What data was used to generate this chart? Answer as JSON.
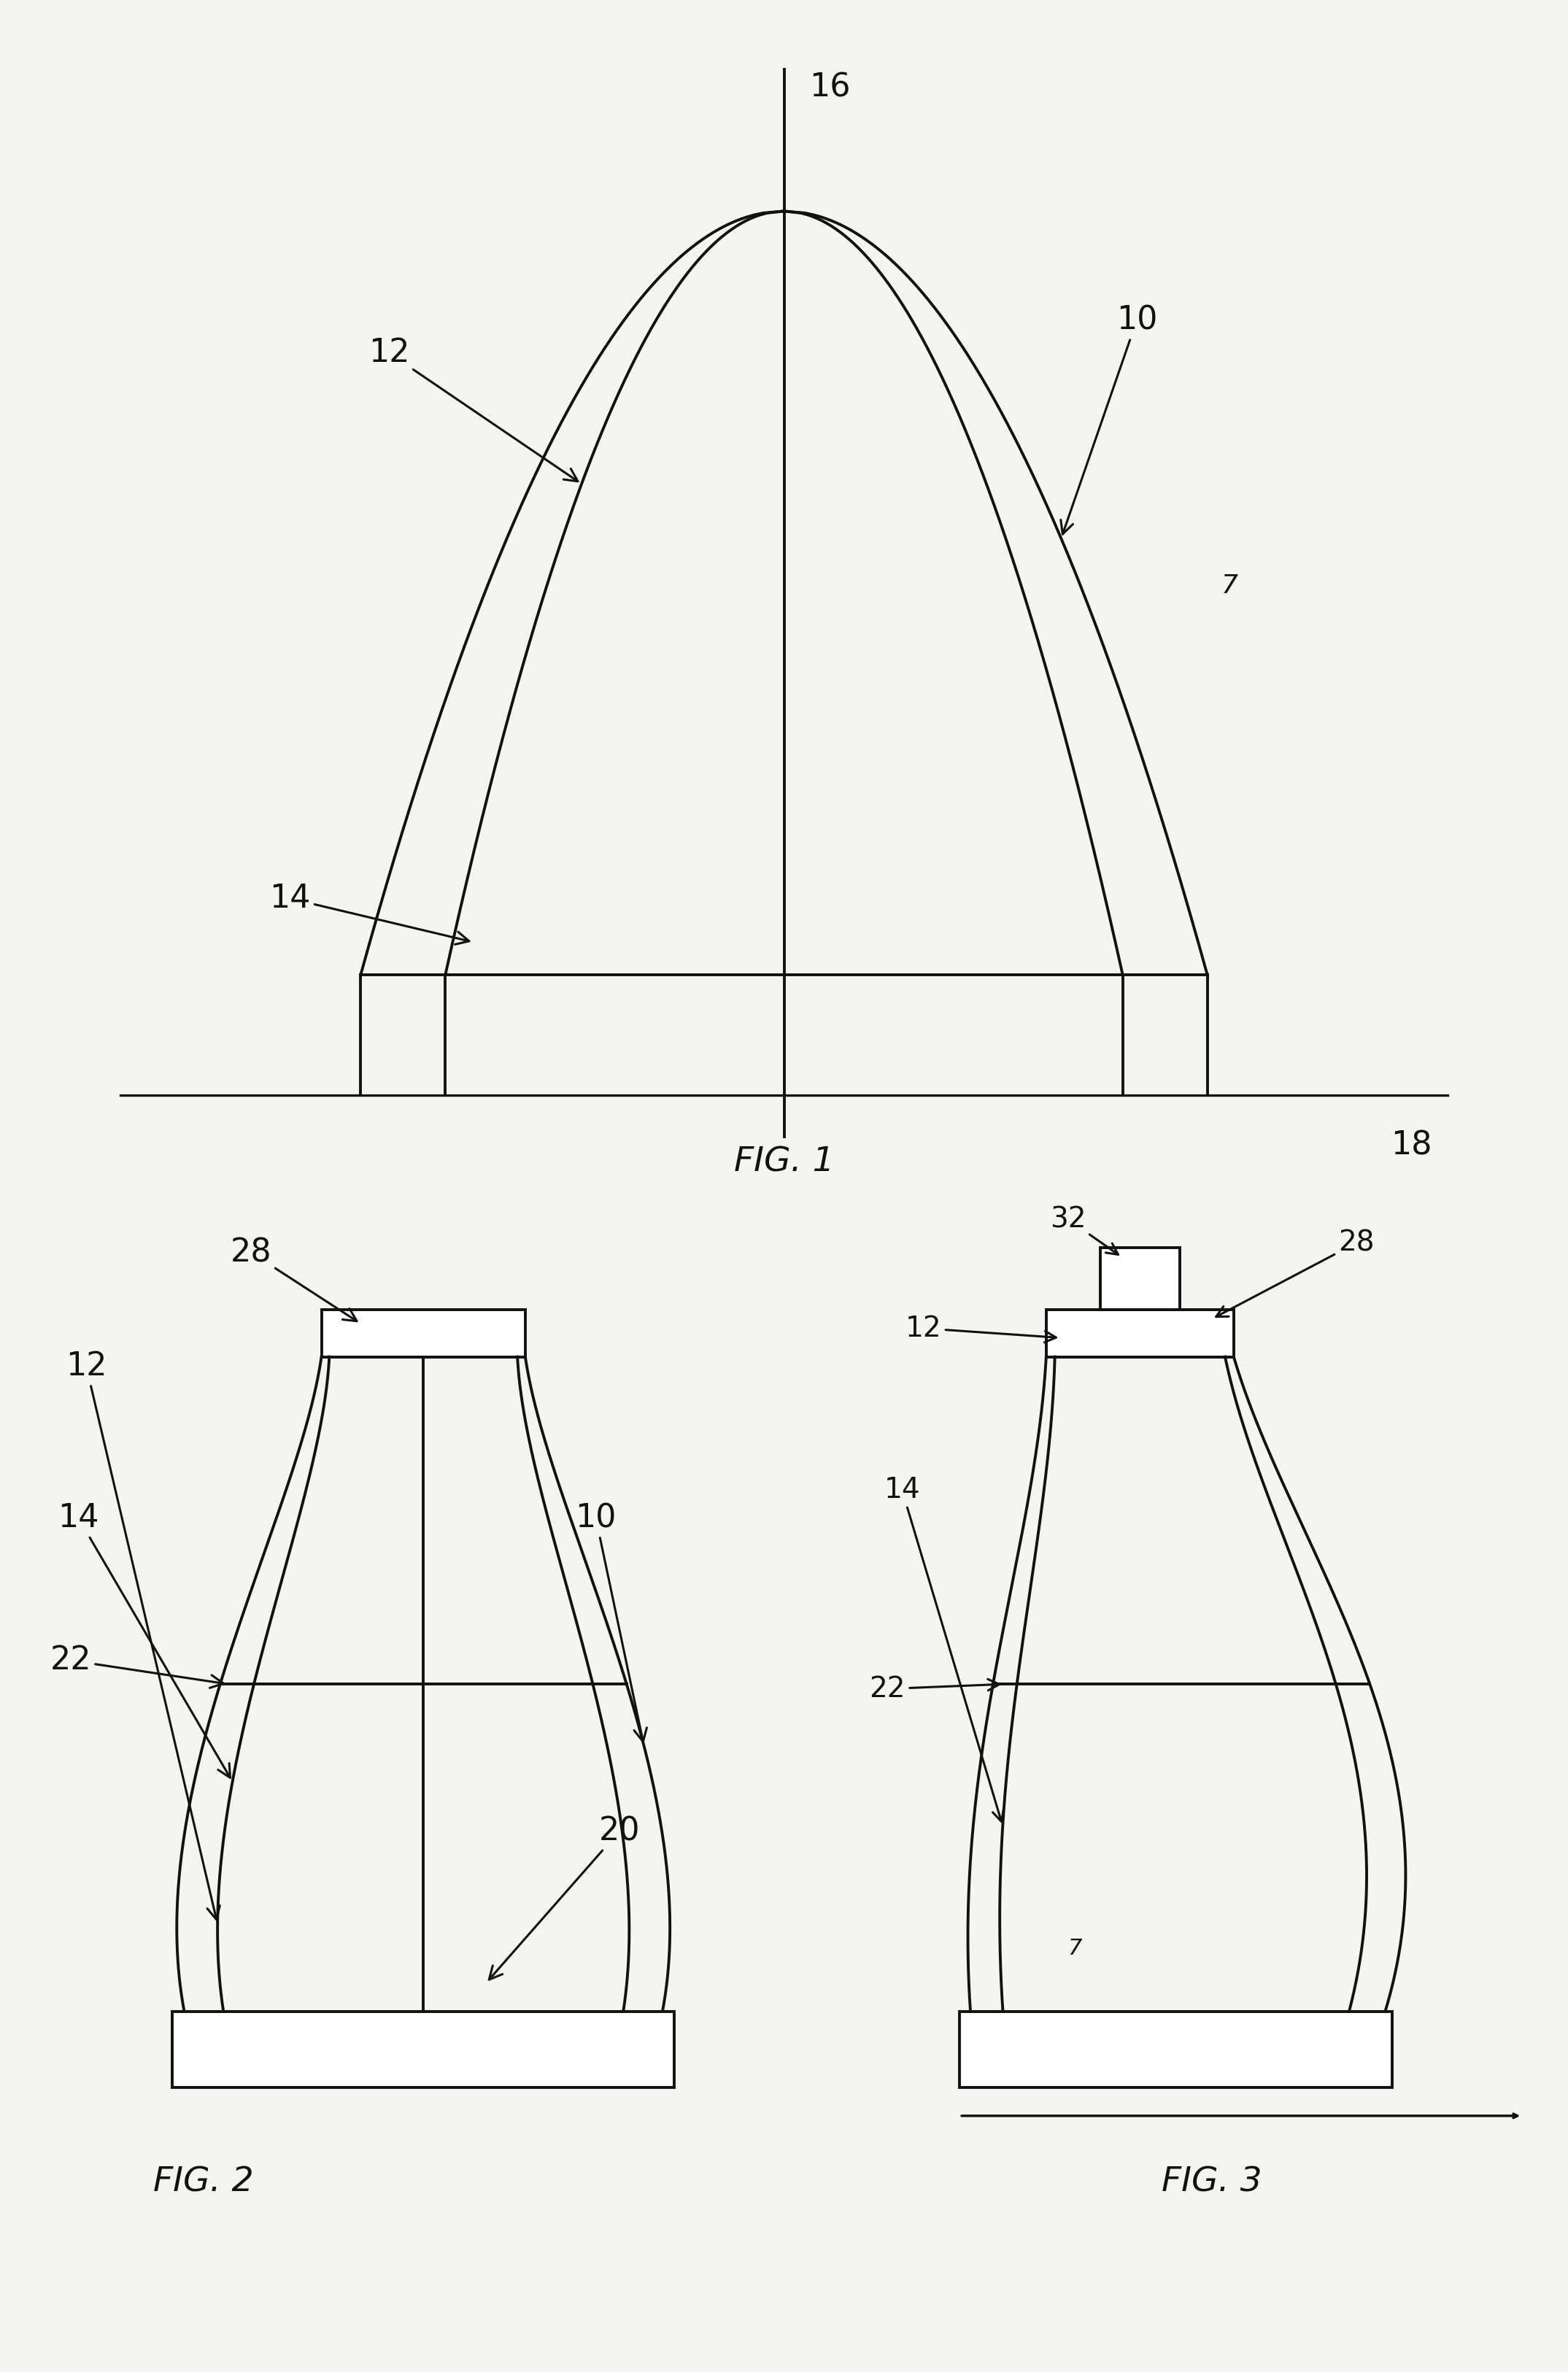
{
  "fig_labels": {
    "fig1": "FIG. 1",
    "fig2": "FIG. 2",
    "fig3": "FIG. 3"
  },
  "bg_color": "#f5f5f0",
  "line_color": "#111111",
  "line_width": 2.8,
  "annotation_fontsize": 32
}
